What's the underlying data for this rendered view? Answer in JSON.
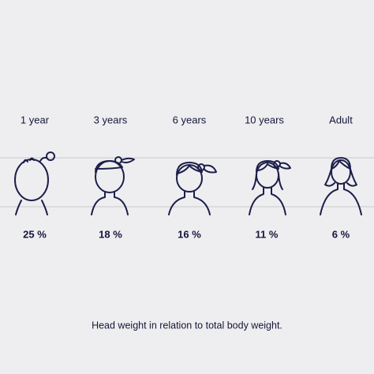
{
  "items": [
    {
      "age": "1 year",
      "share": "25 %"
    },
    {
      "age": "3 years",
      "share": "18 %"
    },
    {
      "age": "6 years",
      "share": "16 %"
    },
    {
      "age": "10 years",
      "share": "11 %"
    },
    {
      "age": "Adult",
      "share": "6 %"
    }
  ],
  "caption": "Head weight in relation to total body weight."
}
